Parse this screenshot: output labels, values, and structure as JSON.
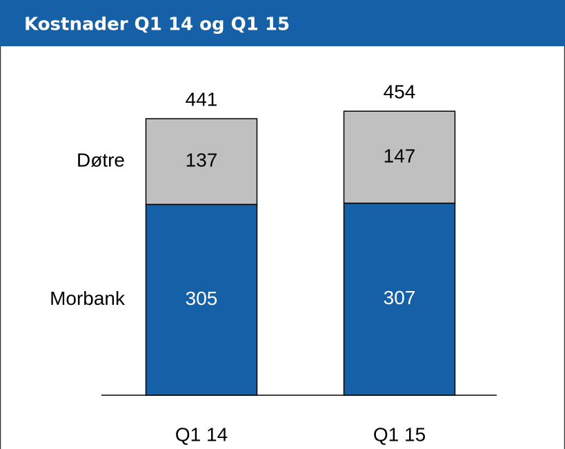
{
  "chart_data": {
    "type": "stacked_bar",
    "title": "Kostnader Q1 14 og Q1 15",
    "categories": [
      "Q1 14",
      "Q1 15"
    ],
    "series": [
      {
        "name": "Morbank",
        "color": "#1560a6",
        "values": [
          305,
          307
        ]
      },
      {
        "name": "Døtre",
        "color": "#c0c0c0",
        "values": [
          137,
          147
        ]
      }
    ],
    "totals": [
      441,
      454
    ]
  }
}
